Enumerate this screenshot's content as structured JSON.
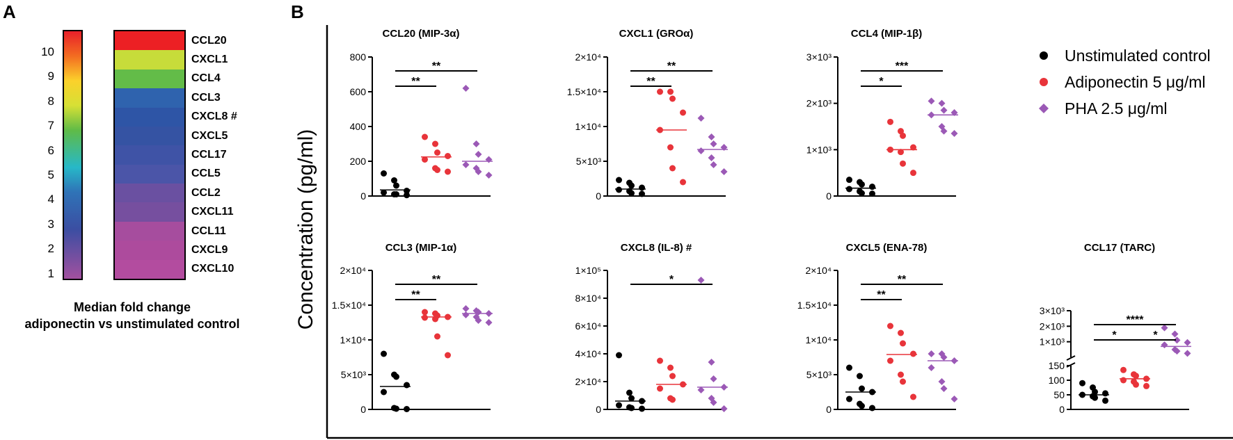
{
  "panel_a_letter": "A",
  "panel_b_letter": "B",
  "heatmap": {
    "colorbar_ticks": [
      "10",
      "9",
      "8",
      "7",
      "6",
      "5",
      "4",
      "3",
      "2",
      "1"
    ],
    "rows": [
      {
        "label": "CCL20",
        "color": "#ec2024"
      },
      {
        "label": "CXCL1",
        "color": "#c7dc3a"
      },
      {
        "label": "CCL4",
        "color": "#63bc48"
      },
      {
        "label": "CCL3",
        "color": "#2f63ae"
      },
      {
        "label": "CXCL8 #",
        "color": "#2e55a6"
      },
      {
        "label": "CXCL5",
        "color": "#3553a3"
      },
      {
        "label": "CCL17",
        "color": "#3f53a6"
      },
      {
        "label": "CCL5",
        "color": "#4b55a8"
      },
      {
        "label": "CCL2",
        "color": "#6a50a1"
      },
      {
        "label": "CXCL11",
        "color": "#764f9f"
      },
      {
        "label": "CCL11",
        "color": "#a64d9e"
      },
      {
        "label": "CXCL9",
        "color": "#ad4b9d"
      },
      {
        "label": "CXCL10",
        "color": "#b34c9f"
      }
    ],
    "caption_line1": "Median fold change",
    "caption_line2": "adiponectin vs unstimulated control"
  },
  "y_axis_label": "Concentration (pg/ml)",
  "legend": [
    {
      "label": "Unstimulated control",
      "marker": "circle",
      "color": "#000000"
    },
    {
      "label": "Adiponectin 5 μg/ml",
      "marker": "circle",
      "color": "#e8343a"
    },
    {
      "label": "PHA 2.5 μg/ml",
      "marker": "diamond",
      "color": "#9b59b6"
    }
  ],
  "chart_data": [
    {
      "type": "scatter",
      "title": "CCL20 (MIP-3α)",
      "ylim": [
        0,
        800
      ],
      "ticks": [
        {
          "v": 0,
          "label": "0"
        },
        {
          "v": 200,
          "label": "200"
        },
        {
          "v": 400,
          "label": "400"
        },
        {
          "v": 600,
          "label": "600"
        },
        {
          "v": 800,
          "label": "800"
        }
      ],
      "groups": [
        {
          "name": "Unstimulated control",
          "values": [
            130,
            90,
            60,
            30,
            20,
            10,
            10,
            5
          ],
          "median": 35
        },
        {
          "name": "Adiponectin 5 μg/ml",
          "values": [
            340,
            300,
            250,
            230,
            210,
            160,
            150,
            140
          ],
          "median": 225
        },
        {
          "name": "PHA 2.5 μg/ml",
          "values": [
            620,
            300,
            240,
            210,
            180,
            160,
            140,
            120
          ],
          "median": 200
        }
      ],
      "brackets": [
        {
          "from": 0,
          "to": 1,
          "level": 0,
          "label": "**"
        },
        {
          "from": 0,
          "to": 2,
          "level": 1,
          "label": "**"
        }
      ]
    },
    {
      "type": "scatter",
      "title": "CXCL1 (GROα)",
      "ylim": [
        0,
        20000
      ],
      "ticks": [
        {
          "v": 0,
          "label": "0"
        },
        {
          "v": 5000,
          "label": "5×10³"
        },
        {
          "v": 10000,
          "label": "1×10⁴"
        },
        {
          "v": 15000,
          "label": "1.5×10⁴"
        },
        {
          "v": 20000,
          "label": "2×10⁴"
        }
      ],
      "groups": [
        {
          "name": "Unstimulated control",
          "values": [
            2300,
            1900,
            1500,
            1200,
            900,
            700,
            400,
            300
          ],
          "median": 1000
        },
        {
          "name": "Adiponectin 5 μg/ml",
          "values": [
            15000,
            15000,
            14000,
            12000,
            9500,
            7000,
            4000,
            2000
          ],
          "median": 9500
        },
        {
          "name": "PHA 2.5 μg/ml",
          "values": [
            11200,
            8500,
            7500,
            7000,
            6500,
            5500,
            4500,
            3500
          ],
          "median": 6700
        }
      ],
      "brackets": [
        {
          "from": 0,
          "to": 1,
          "level": 0,
          "label": "**"
        },
        {
          "from": 0,
          "to": 2,
          "level": 1,
          "label": "**"
        }
      ]
    },
    {
      "type": "scatter",
      "title": "CCL4 (MIP-1β)",
      "ylim": [
        0,
        3000
      ],
      "ticks": [
        {
          "v": 0,
          "label": "0"
        },
        {
          "v": 1000,
          "label": "1×10³"
        },
        {
          "v": 2000,
          "label": "2×10³"
        },
        {
          "v": 3000,
          "label": "3×10³"
        }
      ],
      "groups": [
        {
          "name": "Unstimulated control",
          "values": [
            350,
            300,
            250,
            200,
            150,
            100,
            60,
            50
          ],
          "median": 170
        },
        {
          "name": "Adiponectin 5 μg/ml",
          "values": [
            1600,
            1400,
            1300,
            1050,
            1000,
            950,
            700,
            500
          ],
          "median": 1000
        },
        {
          "name": "PHA 2.5 μg/ml",
          "values": [
            2050,
            2000,
            1850,
            1800,
            1750,
            1500,
            1400,
            1350
          ],
          "median": 1750
        }
      ],
      "brackets": [
        {
          "from": 0,
          "to": 1,
          "level": 0,
          "label": "*"
        },
        {
          "from": 0,
          "to": 2,
          "level": 1,
          "label": "***"
        }
      ]
    },
    {
      "type": "scatter",
      "title": "CCL3 (MIP-1α)",
      "ylim": [
        0,
        20000
      ],
      "ticks": [
        {
          "v": 0,
          "label": "0"
        },
        {
          "v": 5000,
          "label": "5×10³"
        },
        {
          "v": 10000,
          "label": "1×10⁴"
        },
        {
          "v": 15000,
          "label": "1.5×10⁴"
        },
        {
          "v": 20000,
          "label": "2×10⁴"
        }
      ],
      "groups": [
        {
          "name": "Unstimulated control",
          "values": [
            8000,
            5000,
            4700,
            3500,
            2500,
            200,
            100,
            50
          ],
          "median": 3300
        },
        {
          "name": "Adiponectin 5 μg/ml",
          "values": [
            14000,
            13800,
            13500,
            13300,
            13200,
            13000,
            10500,
            7800
          ],
          "median": 13300
        },
        {
          "name": "PHA 2.5 μg/ml",
          "values": [
            14500,
            14200,
            14000,
            13800,
            13600,
            13300,
            12800,
            12500
          ],
          "median": 13800
        }
      ],
      "brackets": [
        {
          "from": 0,
          "to": 1,
          "level": 0,
          "label": "**"
        },
        {
          "from": 0,
          "to": 2,
          "level": 1,
          "label": "**"
        }
      ]
    },
    {
      "type": "scatter",
      "title": "CXCL8 (IL-8) #",
      "ylim": [
        0,
        100000
      ],
      "ticks": [
        {
          "v": 0,
          "label": "0"
        },
        {
          "v": 20000,
          "label": "2×10⁴"
        },
        {
          "v": 40000,
          "label": "4×10⁴"
        },
        {
          "v": 60000,
          "label": "6×10⁴"
        },
        {
          "v": 80000,
          "label": "8×10⁴"
        },
        {
          "v": 100000,
          "label": "1×10⁵"
        }
      ],
      "groups": [
        {
          "name": "Unstimulated control",
          "values": [
            39000,
            12000,
            8000,
            6000,
            3000,
            1500,
            1000,
            500
          ],
          "median": 6000
        },
        {
          "name": "Adiponectin 5 μg/ml",
          "values": [
            35000,
            30000,
            24000,
            18000,
            15000,
            8000,
            7000
          ],
          "median": 18000
        },
        {
          "name": "PHA 2.5 μg/ml",
          "values": [
            93000,
            34000,
            22000,
            16000,
            14000,
            8000,
            5000,
            500
          ],
          "median": 16000
        }
      ],
      "brackets": [
        {
          "from": 0,
          "to": 2,
          "level": 1,
          "label": "*"
        }
      ]
    },
    {
      "type": "scatter",
      "title": "CXCL5 (ENA-78)",
      "ylim": [
        0,
        20000
      ],
      "ticks": [
        {
          "v": 0,
          "label": "0"
        },
        {
          "v": 5000,
          "label": "5×10³"
        },
        {
          "v": 10000,
          "label": "1×10⁴"
        },
        {
          "v": 15000,
          "label": "1.5×10⁴"
        },
        {
          "v": 20000,
          "label": "2×10⁴"
        }
      ],
      "groups": [
        {
          "name": "Unstimulated control",
          "values": [
            6000,
            4800,
            3000,
            2500,
            1500,
            800,
            500,
            200
          ],
          "median": 2500
        },
        {
          "name": "Adiponectin 5 μg/ml",
          "values": [
            12000,
            11000,
            9500,
            8000,
            7000,
            5000,
            4000,
            1800
          ],
          "median": 7900
        },
        {
          "name": "PHA 2.5 μg/ml",
          "values": [
            8000,
            8000,
            7500,
            7000,
            6000,
            4000,
            3000,
            1500
          ],
          "median": 7000
        }
      ],
      "brackets": [
        {
          "from": 0,
          "to": 1,
          "level": 0,
          "label": "**"
        },
        {
          "from": 0,
          "to": 2,
          "level": 1,
          "label": "**"
        }
      ]
    },
    {
      "type": "scatter",
      "title": "CCL17 (TARC)",
      "ylim": [
        0,
        150
      ],
      "broken_axis": true,
      "upper_ylim": [
        0,
        3000
      ],
      "ticks": [
        {
          "v": 0,
          "label": "0"
        },
        {
          "v": 50,
          "label": "50"
        },
        {
          "v": 100,
          "label": "100"
        },
        {
          "v": 150,
          "label": "150"
        }
      ],
      "upper_ticks": [
        {
          "v": 1000,
          "label": "1×10³"
        },
        {
          "v": 2000,
          "label": "2×10³"
        },
        {
          "v": 3000,
          "label": "3×10³"
        }
      ],
      "groups": [
        {
          "name": "Unstimulated control",
          "values": [
            90,
            75,
            60,
            55,
            50,
            45,
            40,
            30
          ],
          "median": 50
        },
        {
          "name": "Adiponectin 5 μg/ml",
          "values": [
            135,
            120,
            115,
            105,
            100,
            95,
            85,
            80
          ],
          "median": 105
        },
        {
          "name": "PHA 2.5 μg/ml",
          "upper": true,
          "values": [
            1900,
            1500,
            1100,
            950,
            800,
            500,
            400,
            250
          ],
          "median": 700
        }
      ],
      "brackets": [
        {
          "from": 0,
          "to": 1,
          "level": 0,
          "label": "*"
        },
        {
          "from": 1,
          "to": 2,
          "level": 0,
          "label": "*"
        },
        {
          "from": 0,
          "to": 2,
          "level": 1,
          "label": "****"
        }
      ]
    }
  ]
}
